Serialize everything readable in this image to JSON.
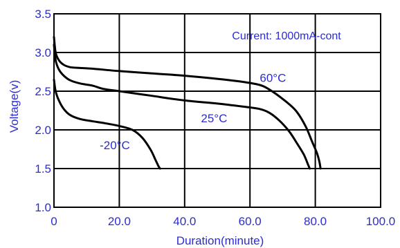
{
  "chart_data": {
    "type": "line",
    "title": "",
    "xlabel": "Duration(minute)",
    "ylabel": "Voltage(v)",
    "xlim": [
      0,
      100
    ],
    "ylim": [
      1.0,
      3.5
    ],
    "x_ticks": [
      0,
      20,
      40,
      60,
      80,
      100
    ],
    "x_tick_labels": [
      "0",
      "20.0",
      "40.0",
      "60.0",
      "80.0",
      "100.0"
    ],
    "y_ticks": [
      1.0,
      1.5,
      2.0,
      2.5,
      3.0,
      3.5
    ],
    "y_tick_labels": [
      "1.0",
      "1.5",
      "2.0",
      "2.5",
      "3.0",
      "3.5"
    ],
    "grid": true,
    "annotation": "Current: 1000mA-cont",
    "series": [
      {
        "name": "60°C",
        "x": [
          0,
          0.5,
          1.5,
          3,
          5,
          8,
          12,
          20,
          30,
          40,
          50,
          58,
          63,
          66,
          70,
          74,
          77,
          79,
          80.5,
          81.3,
          81.6
        ],
        "y": [
          3.2,
          3.0,
          2.9,
          2.84,
          2.81,
          2.8,
          2.79,
          2.76,
          2.73,
          2.7,
          2.66,
          2.62,
          2.58,
          2.52,
          2.4,
          2.25,
          2.05,
          1.85,
          1.7,
          1.58,
          1.5
        ]
      },
      {
        "name": "25°C",
        "x": [
          0,
          0.5,
          1.5,
          3,
          5,
          8,
          12,
          15,
          20,
          30,
          40,
          50,
          58,
          63,
          66,
          69,
          72,
          74.5,
          76.5,
          77.8,
          78.3
        ],
        "y": [
          3.1,
          2.9,
          2.78,
          2.7,
          2.64,
          2.6,
          2.57,
          2.53,
          2.5,
          2.44,
          2.38,
          2.34,
          2.3,
          2.27,
          2.22,
          2.12,
          1.98,
          1.82,
          1.68,
          1.55,
          1.5
        ]
      },
      {
        "name": "-20°C",
        "x": [
          0,
          0.5,
          1.5,
          3,
          5,
          8,
          12,
          15,
          20,
          24,
          27,
          29.5,
          31,
          32,
          32.5
        ],
        "y": [
          2.65,
          2.5,
          2.38,
          2.27,
          2.19,
          2.14,
          2.11,
          2.09,
          2.05,
          2.0,
          1.9,
          1.75,
          1.62,
          1.53,
          1.5
        ]
      }
    ],
    "series_label_positions": {
      "60°C": [
        63,
        2.62
      ],
      "25°C": [
        45,
        2.1
      ],
      "-20°C": [
        14,
        1.75
      ]
    }
  }
}
